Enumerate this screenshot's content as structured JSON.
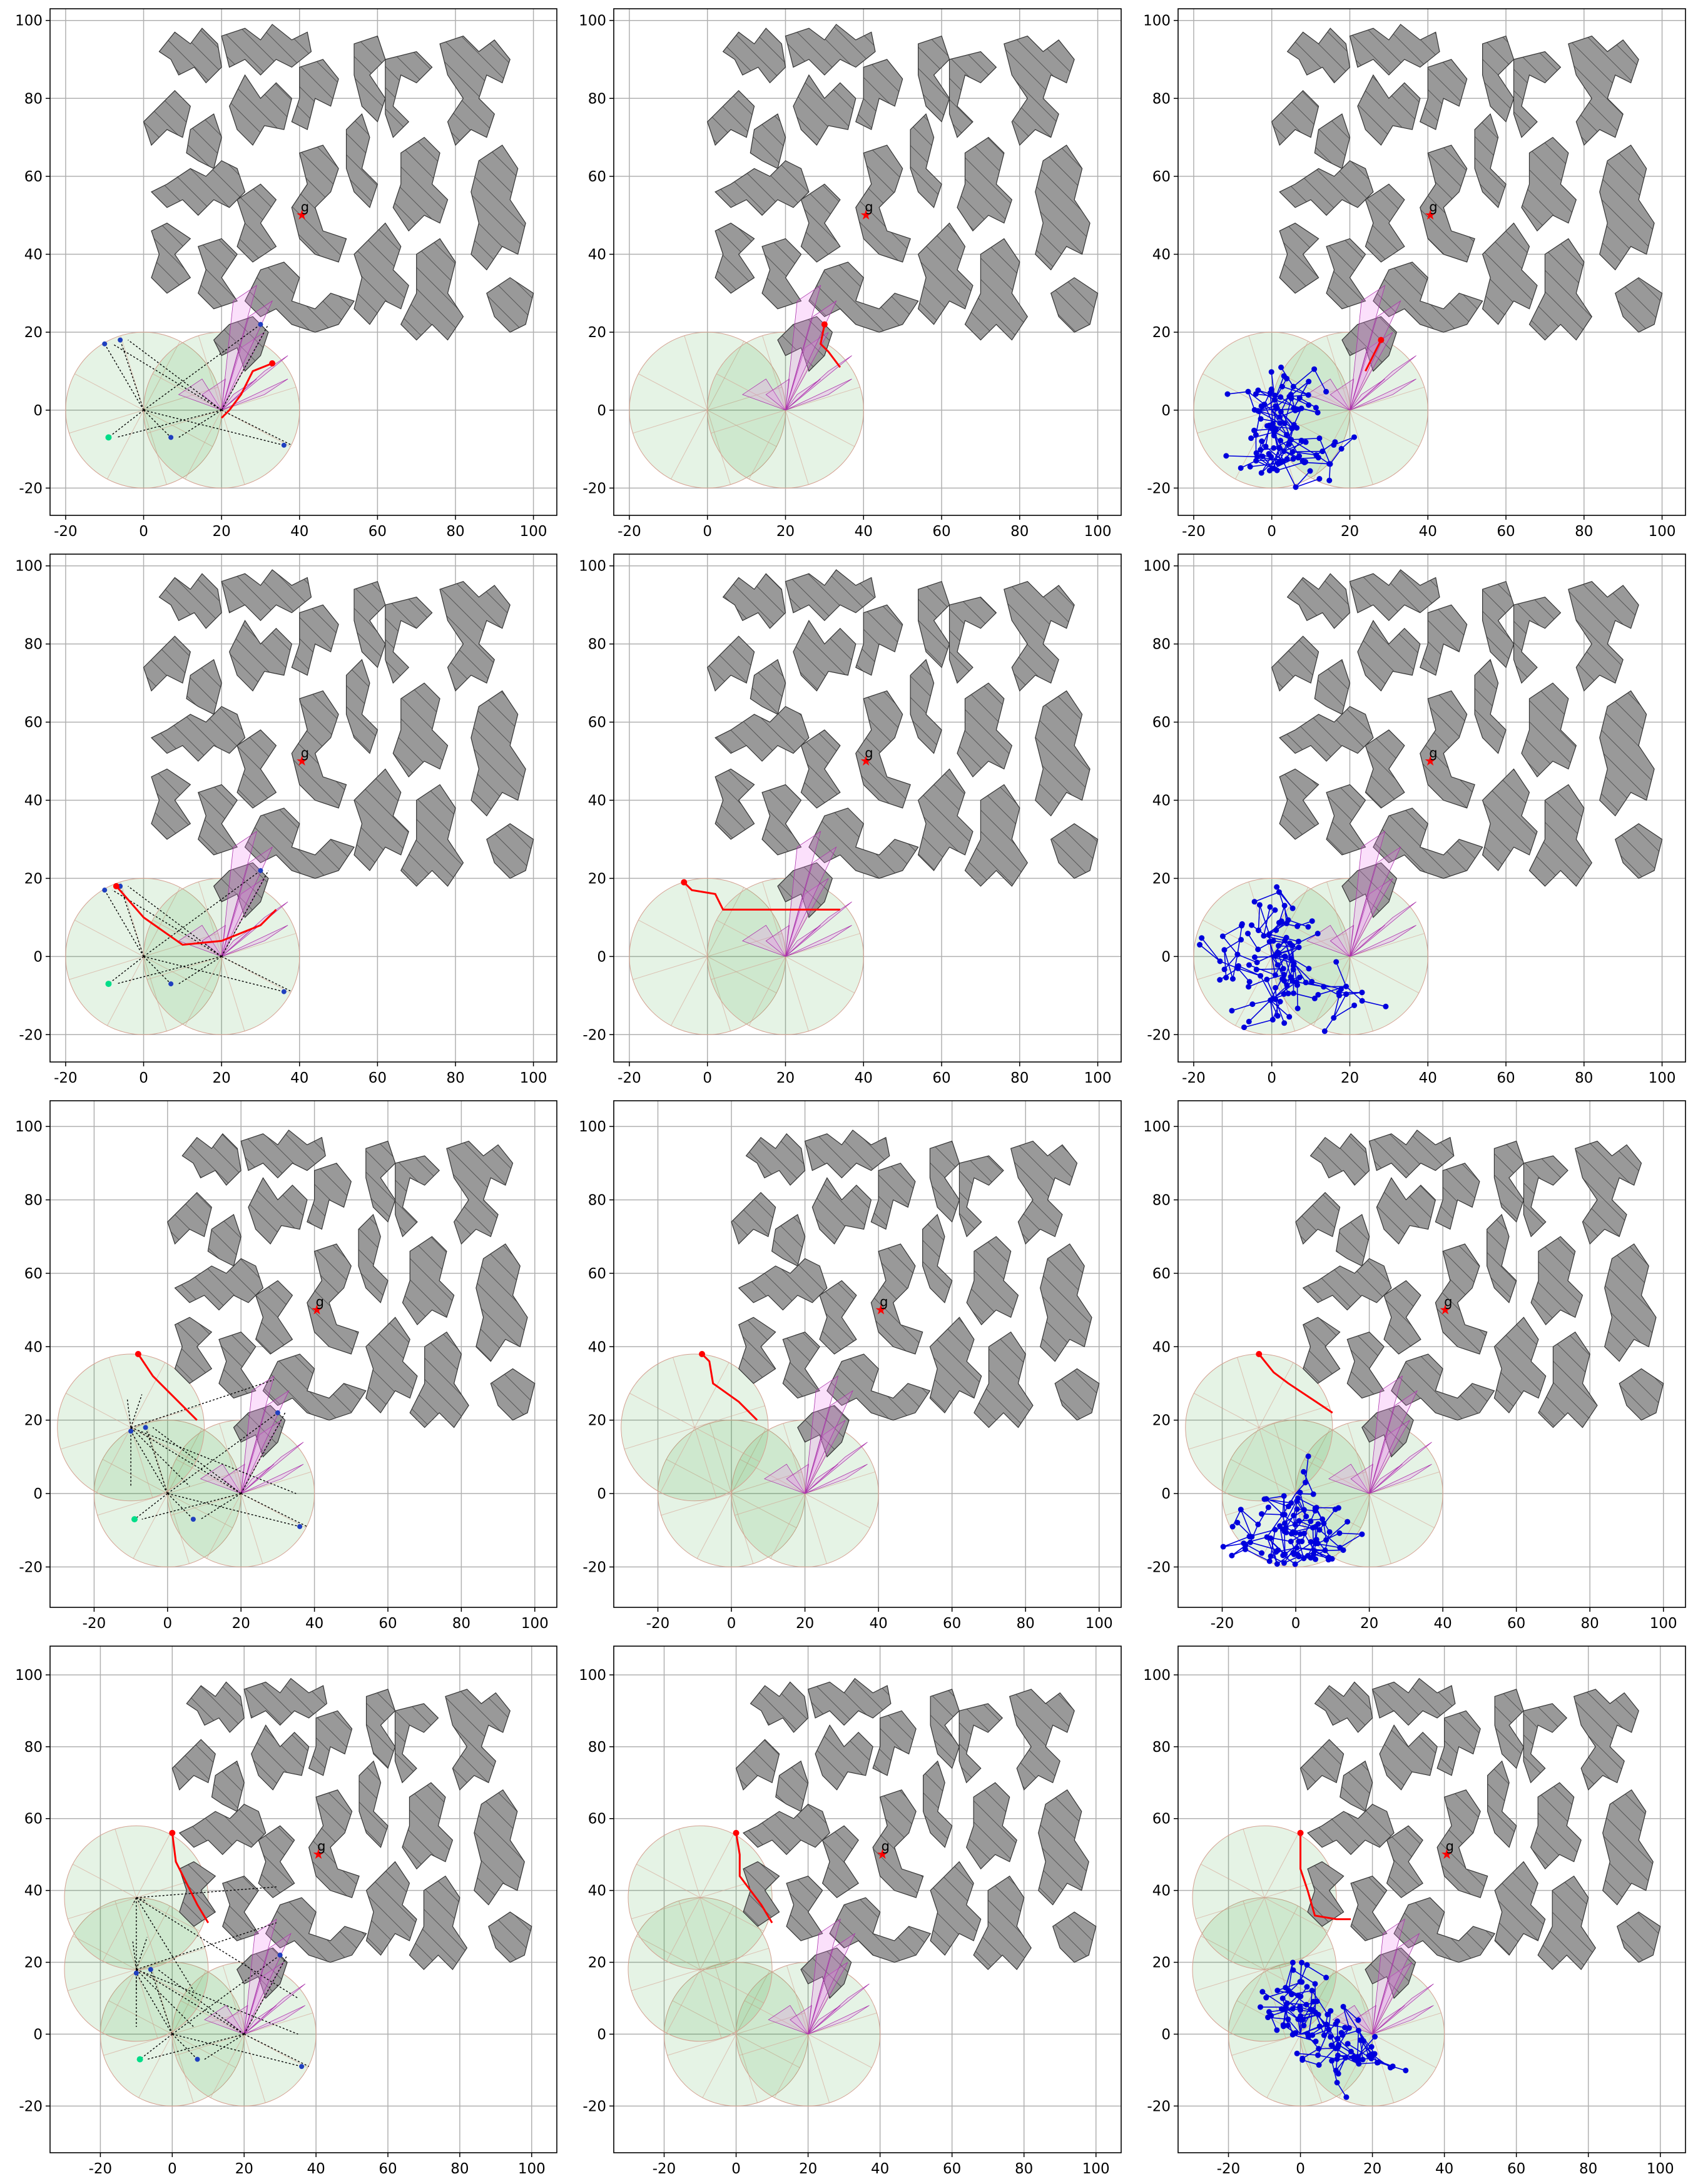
{
  "figure": {
    "rows": 4,
    "cols": 3
  },
  "colors": {
    "obstacle_fill": "#999999",
    "obstacle_edge": "#333333",
    "grid": "#b0b0b0",
    "sensor_fill": "#2ca02c",
    "sensor_ray": "#d4a090",
    "explored": "#ee82ee",
    "explored_edge": "#aa33aa",
    "path": "#ff0000",
    "tree": "#0000dd",
    "frontier": "#00dd88",
    "goal": "#ff0000"
  },
  "chart_data": [
    {
      "type": "scatter",
      "panel": "r1c1",
      "mode": "graph",
      "xlim": [
        -24,
        106
      ],
      "ylim": [
        -27,
        103
      ],
      "xticks": [
        "-20",
        "0",
        "20",
        "40",
        "60",
        "80",
        "100"
      ],
      "yticks": [
        "-20",
        "0",
        "20",
        "40",
        "60",
        "80",
        "100"
      ],
      "goal_label": "g",
      "goal": [
        40,
        50
      ],
      "sensors": [
        [
          0,
          0
        ],
        [
          20,
          0
        ]
      ],
      "path": [
        [
          33,
          12
        ],
        [
          28,
          10
        ],
        [
          25,
          4
        ],
        [
          22,
          0
        ],
        [
          20,
          -2
        ]
      ]
    },
    {
      "type": "line",
      "panel": "r1c2",
      "mode": "path",
      "xlim": [
        -24,
        106
      ],
      "ylim": [
        -27,
        103
      ],
      "xticks": [
        "-20",
        "0",
        "20",
        "40",
        "60",
        "80",
        "100"
      ],
      "yticks": [
        "-20",
        "0",
        "20",
        "40",
        "60",
        "80",
        "100"
      ],
      "goal_label": "g",
      "goal": [
        40,
        50
      ],
      "sensors": [
        [
          0,
          0
        ],
        [
          20,
          0
        ]
      ],
      "path": [
        [
          30,
          22
        ],
        [
          29,
          17
        ],
        [
          31,
          15
        ],
        [
          34,
          11
        ]
      ]
    },
    {
      "type": "scatter",
      "panel": "r1c3",
      "mode": "tree",
      "xlim": [
        -24,
        106
      ],
      "ylim": [
        -27,
        103
      ],
      "xticks": [
        "-20",
        "0",
        "20",
        "40",
        "60",
        "80",
        "100"
      ],
      "yticks": [
        "-20",
        "0",
        "20",
        "40",
        "60",
        "80",
        "100"
      ],
      "goal_label": "g",
      "goal": [
        40,
        50
      ],
      "sensors": [
        [
          0,
          0
        ],
        [
          20,
          0
        ]
      ],
      "path": [
        [
          28,
          18
        ],
        [
          26,
          14
        ],
        [
          24,
          10
        ]
      ]
    },
    {
      "type": "scatter",
      "panel": "r2c1",
      "mode": "graph",
      "xlim": [
        -24,
        106
      ],
      "ylim": [
        -27,
        103
      ],
      "xticks": [
        "-20",
        "0",
        "20",
        "40",
        "60",
        "80",
        "100"
      ],
      "yticks": [
        "-20",
        "0",
        "20",
        "40",
        "60",
        "80",
        "100"
      ],
      "goal_label": "g",
      "goal": [
        40,
        50
      ],
      "sensors": [
        [
          0,
          0
        ],
        [
          20,
          0
        ]
      ],
      "path": [
        [
          -7,
          18
        ],
        [
          0,
          10
        ],
        [
          10,
          3
        ],
        [
          20,
          4
        ],
        [
          30,
          8
        ],
        [
          34,
          12
        ]
      ]
    },
    {
      "type": "line",
      "panel": "r2c2",
      "mode": "path",
      "xlim": [
        -24,
        106
      ],
      "ylim": [
        -27,
        103
      ],
      "xticks": [
        "-20",
        "0",
        "20",
        "40",
        "60",
        "80",
        "100"
      ],
      "yticks": [
        "-20",
        "0",
        "20",
        "40",
        "60",
        "80",
        "100"
      ],
      "goal_label": "g",
      "goal": [
        40,
        50
      ],
      "sensors": [
        [
          0,
          0
        ],
        [
          20,
          0
        ]
      ],
      "path": [
        [
          -6,
          19
        ],
        [
          -4,
          17
        ],
        [
          2,
          16
        ],
        [
          4,
          12
        ],
        [
          20,
          12
        ],
        [
          34,
          12
        ]
      ]
    },
    {
      "type": "scatter",
      "panel": "r2c3",
      "mode": "tree",
      "xlim": [
        -24,
        106
      ],
      "ylim": [
        -27,
        103
      ],
      "xticks": [
        "-20",
        "0",
        "20",
        "40",
        "60",
        "80",
        "100"
      ],
      "yticks": [
        "-20",
        "0",
        "20",
        "40",
        "60",
        "80",
        "100"
      ],
      "goal_label": "g",
      "goal": [
        40,
        50
      ],
      "sensors": [
        [
          0,
          0
        ],
        [
          20,
          0
        ]
      ],
      "path": []
    },
    {
      "type": "scatter",
      "panel": "r3c1",
      "mode": "graph",
      "xlim": [
        -32,
        106
      ],
      "ylim": [
        -31,
        107
      ],
      "xticks": [
        "-20",
        "0",
        "20",
        "40",
        "60",
        "80",
        "100"
      ],
      "yticks": [
        "-20",
        "0",
        "20",
        "40",
        "60",
        "80",
        "100"
      ],
      "goal_label": "g",
      "goal": [
        40,
        50
      ],
      "sensors": [
        [
          0,
          0
        ],
        [
          20,
          0
        ],
        [
          -10,
          18
        ]
      ],
      "path": [
        [
          -8,
          38
        ],
        [
          -4,
          32
        ],
        [
          6,
          22
        ],
        [
          8,
          20
        ]
      ]
    },
    {
      "type": "line",
      "panel": "r3c2",
      "mode": "path",
      "xlim": [
        -32,
        106
      ],
      "ylim": [
        -31,
        107
      ],
      "xticks": [
        "-20",
        "0",
        "20",
        "40",
        "60",
        "80",
        "100"
      ],
      "yticks": [
        "-20",
        "0",
        "20",
        "40",
        "60",
        "80",
        "100"
      ],
      "goal_label": "g",
      "goal": [
        40,
        50
      ],
      "sensors": [
        [
          0,
          0
        ],
        [
          20,
          0
        ],
        [
          -10,
          18
        ]
      ],
      "path": [
        [
          -8,
          38
        ],
        [
          -6,
          36
        ],
        [
          -5,
          30
        ],
        [
          2,
          25
        ],
        [
          7,
          20
        ]
      ]
    },
    {
      "type": "scatter",
      "panel": "r3c3",
      "mode": "tree",
      "xlim": [
        -32,
        106
      ],
      "ylim": [
        -31,
        107
      ],
      "xticks": [
        "-20",
        "0",
        "20",
        "40",
        "60",
        "80",
        "100"
      ],
      "yticks": [
        "-20",
        "0",
        "20",
        "40",
        "60",
        "80",
        "100"
      ],
      "goal_label": "g",
      "goal": [
        40,
        50
      ],
      "sensors": [
        [
          0,
          0
        ],
        [
          20,
          0
        ],
        [
          -10,
          18
        ]
      ],
      "path": [
        [
          -10,
          38
        ],
        [
          -6,
          33
        ],
        [
          -2,
          30
        ],
        [
          4,
          26
        ],
        [
          10,
          22
        ]
      ]
    },
    {
      "type": "scatter",
      "panel": "r4c1",
      "mode": "graph",
      "xlim": [
        -34,
        107
      ],
      "ylim": [
        -33,
        108
      ],
      "xticks": [
        "-20",
        "0",
        "20",
        "40",
        "60",
        "80",
        "100"
      ],
      "yticks": [
        "-20",
        "0",
        "20",
        "40",
        "60",
        "80",
        "100"
      ],
      "goal_label": "g",
      "goal": [
        40,
        50
      ],
      "sensors": [
        [
          0,
          0
        ],
        [
          20,
          0
        ],
        [
          -10,
          18
        ],
        [
          -10,
          38
        ]
      ],
      "path": [
        [
          0,
          56
        ],
        [
          1,
          48
        ],
        [
          4,
          42
        ],
        [
          7,
          36
        ],
        [
          10,
          31
        ]
      ]
    },
    {
      "type": "line",
      "panel": "r4c2",
      "mode": "path",
      "xlim": [
        -34,
        107
      ],
      "ylim": [
        -33,
        108
      ],
      "xticks": [
        "-20",
        "0",
        "20",
        "40",
        "60",
        "80",
        "100"
      ],
      "yticks": [
        "-20",
        "0",
        "20",
        "40",
        "60",
        "80",
        "100"
      ],
      "goal_label": "g",
      "goal": [
        40,
        50
      ],
      "sensors": [
        [
          0,
          0
        ],
        [
          20,
          0
        ],
        [
          -10,
          18
        ],
        [
          -10,
          38
        ]
      ],
      "path": [
        [
          0,
          56
        ],
        [
          1,
          50
        ],
        [
          1,
          44
        ],
        [
          4,
          40
        ],
        [
          7,
          36
        ],
        [
          10,
          31
        ]
      ]
    },
    {
      "type": "scatter",
      "panel": "r4c3",
      "mode": "tree",
      "xlim": [
        -34,
        107
      ],
      "ylim": [
        -33,
        108
      ],
      "xticks": [
        "-20",
        "0",
        "20",
        "40",
        "60",
        "80",
        "100"
      ],
      "yticks": [
        "-20",
        "0",
        "20",
        "40",
        "60",
        "80",
        "100"
      ],
      "goal_label": "g",
      "goal": [
        40,
        50
      ],
      "sensors": [
        [
          0,
          0
        ],
        [
          20,
          0
        ],
        [
          -10,
          18
        ],
        [
          -10,
          38
        ]
      ],
      "path": [
        [
          0,
          56
        ],
        [
          0,
          46
        ],
        [
          2,
          40
        ],
        [
          4,
          33
        ],
        [
          10,
          32
        ],
        [
          14,
          32
        ]
      ]
    }
  ]
}
